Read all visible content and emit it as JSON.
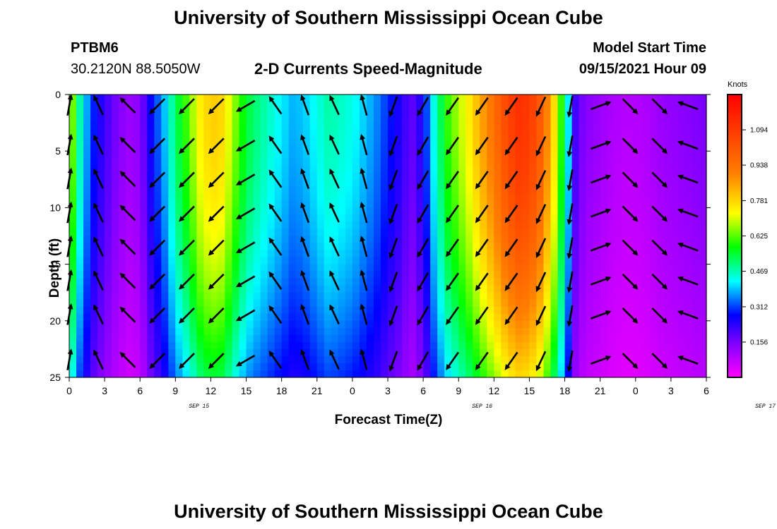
{
  "title": "University of Southern Mississippi Ocean Cube",
  "footer_title": "University of Southern Mississippi Ocean Cube",
  "station": {
    "id": "PTBM6",
    "location": "30.2120N  88.5050W"
  },
  "subtitle": "2-D Currents Speed-Magnitude",
  "model_start": {
    "label": "Model Start Time",
    "value": "09/15/2021 Hour 09"
  },
  "chart_data": {
    "type": "heatmap",
    "title": "2-D Currents Speed-Magnitude",
    "xlabel": "Forecast Time(Z)",
    "ylabel": "Depth (ft)",
    "x_tick_labels": [
      "0",
      "3",
      "6",
      "9",
      "12",
      "15",
      "18",
      "21",
      "0",
      "3",
      "6",
      "9",
      "12",
      "15",
      "18",
      "21",
      "0",
      "3",
      "6"
    ],
    "x_date_labels": [
      {
        "label": "SEP 15",
        "at_hour": 11
      },
      {
        "label": "SEP 16",
        "at_hour": 35
      },
      {
        "label": "SEP 17",
        "at_hour": 59
      }
    ],
    "x_hours_range": [
      0,
      54
    ],
    "y_tick_labels": [
      "0",
      "5",
      "10",
      "15",
      "20",
      "25"
    ],
    "ylim": [
      0,
      25
    ],
    "colorbar": {
      "title": "Knots",
      "tick_labels": [
        "1.094",
        "0.938",
        "0.781",
        "0.625",
        "0.469",
        "0.312",
        "0.156"
      ],
      "range": [
        0.0,
        1.25
      ]
    },
    "time_profile_knots": [
      [
        0,
        0.72
      ],
      [
        1,
        0.45
      ],
      [
        2,
        0.3
      ],
      [
        3,
        0.22
      ],
      [
        4,
        0.16
      ],
      [
        5,
        0.12
      ],
      [
        6,
        0.14
      ],
      [
        7,
        0.28
      ],
      [
        8,
        0.38
      ],
      [
        9,
        0.52
      ],
      [
        10,
        0.62
      ],
      [
        11,
        0.74
      ],
      [
        12,
        0.8
      ],
      [
        13,
        0.78
      ],
      [
        14,
        0.66
      ],
      [
        15,
        0.55
      ],
      [
        16,
        0.5
      ],
      [
        17,
        0.46
      ],
      [
        18,
        0.42
      ],
      [
        19,
        0.38
      ],
      [
        20,
        0.4
      ],
      [
        21,
        0.44
      ],
      [
        22,
        0.48
      ],
      [
        23,
        0.46
      ],
      [
        24,
        0.44
      ],
      [
        25,
        0.4
      ],
      [
        26,
        0.36
      ],
      [
        27,
        0.3
      ],
      [
        28,
        0.25
      ],
      [
        29,
        0.18
      ],
      [
        30,
        0.26
      ],
      [
        31,
        0.46
      ],
      [
        32,
        0.6
      ],
      [
        33,
        0.68
      ],
      [
        34,
        0.76
      ],
      [
        35,
        0.86
      ],
      [
        36,
        0.95
      ],
      [
        37,
        1.05
      ],
      [
        38,
        1.12
      ],
      [
        39,
        1.1
      ],
      [
        40,
        1.0
      ],
      [
        41,
        0.8
      ],
      [
        42,
        0.52
      ],
      [
        43,
        0.18
      ],
      [
        44,
        0.14
      ],
      [
        45,
        0.12
      ],
      [
        46,
        0.1
      ],
      [
        47,
        0.09
      ],
      [
        48,
        0.09
      ],
      [
        49,
        0.1
      ],
      [
        50,
        0.12
      ],
      [
        51,
        0.13
      ],
      [
        52,
        0.14
      ],
      [
        53,
        0.15
      ],
      [
        54,
        0.16
      ]
    ],
    "vector_times_hours": [
      0,
      2.5,
      5,
      7.5,
      10,
      12.5,
      15,
      17.5,
      20,
      22.5,
      25,
      27.5,
      30,
      32.5,
      35,
      37.5,
      40,
      42.5,
      45,
      47.5,
      50,
      52.5
    ],
    "vector_depths_ft": [
      1,
      4.5,
      7.5,
      10.5,
      13.5,
      16.5,
      19.5,
      23.5
    ],
    "vector_direction_deg": [
      10,
      335,
      315,
      225,
      225,
      225,
      240,
      325,
      340,
      335,
      345,
      200,
      210,
      215,
      215,
      215,
      205,
      190,
      70,
      135,
      135,
      290
    ]
  }
}
